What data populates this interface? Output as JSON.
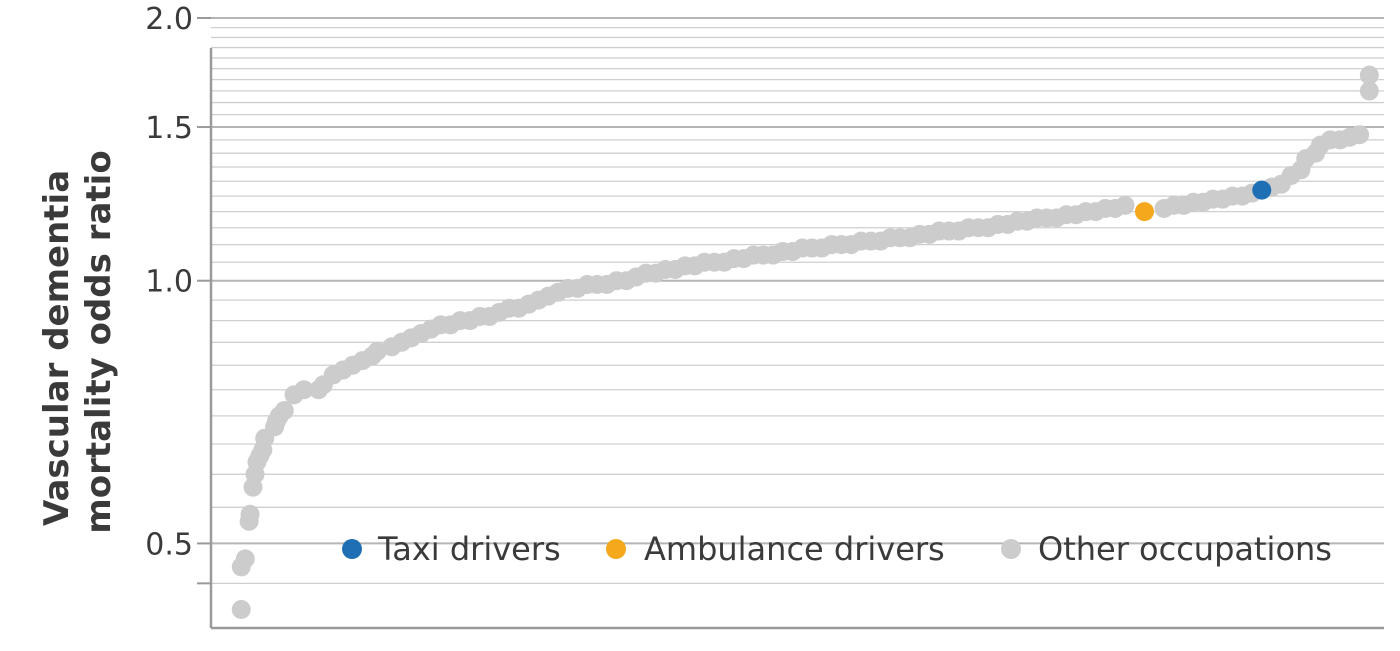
{
  "chart_data": {
    "type": "scatter",
    "ylabel_lines": [
      "Vascular dementia",
      "mortality odds ratio"
    ],
    "yscale": "log",
    "ylim": [
      0.4,
      2.0
    ],
    "yticks": [
      {
        "value": 0.5,
        "label": "0.5"
      },
      {
        "value": 1.0,
        "label": "1.0"
      },
      {
        "value": 1.5,
        "label": "1.5"
      },
      {
        "value": 2.0,
        "label": "2.0"
      }
    ],
    "minor_gridlines": [
      0.45,
      0.55,
      0.6,
      0.65,
      0.7,
      0.75,
      0.8,
      0.85,
      0.9,
      0.95,
      1.05,
      1.1,
      1.15,
      1.2,
      1.25,
      1.3,
      1.35,
      1.4,
      1.45,
      1.55,
      1.6,
      1.65,
      1.7,
      1.75,
      1.8,
      1.85,
      1.9,
      1.95
    ],
    "grid": true,
    "legend_position": "bottom-right",
    "colors": {
      "taxi": "#1f6fb5",
      "ambulance": "#f5a81c",
      "other": "#cccccc",
      "grid": "#cfcfcf",
      "axis": "#9a9a9a",
      "text": "#3a3a3a"
    },
    "legend": [
      {
        "key": "taxi",
        "label": "Taxi drivers"
      },
      {
        "key": "ambulance",
        "label": "Ambulance drivers"
      },
      {
        "key": "other",
        "label": "Other occupations"
      }
    ],
    "series": [
      {
        "name": "Taxi drivers",
        "key": "taxi",
        "x": [
          0.8958
        ],
        "y": [
          1.27
        ]
      },
      {
        "name": "Ambulance drivers",
        "key": "ambulance",
        "x": [
          0.7958
        ],
        "y": [
          1.2
        ]
      },
      {
        "name": "Other occupations",
        "key": "other",
        "x": [
          0.0258,
          0.0258,
          0.0292,
          0.0325,
          0.0333,
          0.0358,
          0.0375,
          0.0392,
          0.0417,
          0.0442,
          0.0458,
          0.0542,
          0.0558,
          0.0583,
          0.0625,
          0.0708,
          0.0792,
          0.0917,
          0.0958,
          0.1042,
          0.1125,
          0.1208,
          0.1292,
          0.1375,
          0.1417,
          0.1542,
          0.1625,
          0.1708,
          0.1792,
          0.1875,
          0.1958,
          0.2042,
          0.2125,
          0.2208,
          0.2292,
          0.2375,
          0.2458,
          0.2542,
          0.2625,
          0.2708,
          0.2792,
          0.2875,
          0.2958,
          0.3042,
          0.3125,
          0.3208,
          0.3292,
          0.3375,
          0.3458,
          0.3542,
          0.3625,
          0.3708,
          0.3792,
          0.3875,
          0.3958,
          0.4042,
          0.4125,
          0.4208,
          0.4292,
          0.4375,
          0.4458,
          0.4542,
          0.4625,
          0.4708,
          0.4792,
          0.4875,
          0.4958,
          0.5042,
          0.5125,
          0.5208,
          0.5292,
          0.5375,
          0.5458,
          0.5542,
          0.5625,
          0.5708,
          0.5792,
          0.5875,
          0.5958,
          0.6042,
          0.6125,
          0.6208,
          0.6292,
          0.6375,
          0.6458,
          0.6542,
          0.6625,
          0.6708,
          0.6792,
          0.6875,
          0.6958,
          0.7042,
          0.7125,
          0.7208,
          0.7292,
          0.7375,
          0.7458,
          0.7542,
          0.7625,
          0.7708,
          0.7792,
          0.8125,
          0.8208,
          0.8292,
          0.8375,
          0.8458,
          0.8542,
          0.8625,
          0.8708,
          0.8792,
          0.8875,
          0.9042,
          0.9125,
          0.9208,
          0.9292,
          0.9333,
          0.9417,
          0.9458,
          0.9542,
          0.9625,
          0.9708,
          0.9792,
          0.9875,
          0.9875
        ],
        "y": [
          0.42,
          0.47,
          0.48,
          0.53,
          0.54,
          0.58,
          0.6,
          0.62,
          0.63,
          0.64,
          0.66,
          0.68,
          0.69,
          0.7,
          0.71,
          0.74,
          0.75,
          0.75,
          0.76,
          0.78,
          0.79,
          0.8,
          0.81,
          0.82,
          0.83,
          0.84,
          0.85,
          0.86,
          0.87,
          0.88,
          0.89,
          0.89,
          0.9,
          0.9,
          0.91,
          0.91,
          0.92,
          0.93,
          0.93,
          0.94,
          0.95,
          0.96,
          0.97,
          0.98,
          0.98,
          0.99,
          0.99,
          0.99,
          1.0,
          1.0,
          1.01,
          1.02,
          1.02,
          1.03,
          1.03,
          1.04,
          1.04,
          1.05,
          1.05,
          1.05,
          1.06,
          1.06,
          1.07,
          1.07,
          1.07,
          1.08,
          1.08,
          1.09,
          1.09,
          1.09,
          1.1,
          1.1,
          1.1,
          1.11,
          1.11,
          1.11,
          1.12,
          1.12,
          1.12,
          1.13,
          1.13,
          1.14,
          1.14,
          1.14,
          1.15,
          1.15,
          1.15,
          1.16,
          1.16,
          1.17,
          1.17,
          1.18,
          1.18,
          1.18,
          1.19,
          1.19,
          1.2,
          1.2,
          1.21,
          1.21,
          1.22,
          1.21,
          1.22,
          1.22,
          1.23,
          1.23,
          1.24,
          1.24,
          1.25,
          1.25,
          1.26,
          1.28,
          1.29,
          1.32,
          1.34,
          1.38,
          1.4,
          1.43,
          1.45,
          1.45,
          1.46,
          1.47,
          1.65,
          1.72
        ]
      }
    ]
  }
}
